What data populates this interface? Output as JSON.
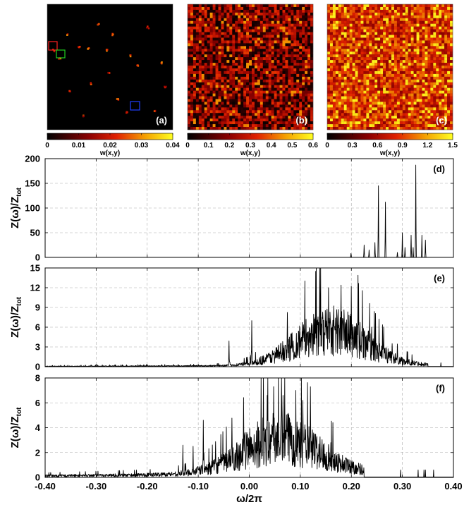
{
  "chart_data": [
    {
      "id": "a",
      "type": "heatmap",
      "panel_label": "(a)",
      "colorbar": {
        "label": "w(x,y)",
        "ticks": [
          "0",
          "0.01",
          "0.02",
          "0.03",
          "0.04"
        ],
        "range": [
          0,
          0.04
        ]
      },
      "density": "sparse",
      "highlight_boxes": [
        {
          "color": "#ff2020"
        },
        {
          "color": "#20d020"
        },
        {
          "color": "#2040ff"
        }
      ]
    },
    {
      "id": "b",
      "type": "heatmap",
      "panel_label": "(b)",
      "colorbar": {
        "label": "w(x,y)",
        "ticks": [
          "0",
          "0.1",
          "0.2",
          "0.3",
          "0.4",
          "0.5",
          "0.6"
        ],
        "range": [
          0,
          0.6
        ]
      },
      "density": "medium"
    },
    {
      "id": "c",
      "type": "heatmap",
      "panel_label": "(c)",
      "colorbar": {
        "label": "w(x,y)",
        "ticks": [
          "0",
          "0.3",
          "0.6",
          "0.9",
          "1.2",
          "1.5"
        ],
        "range": [
          0,
          1.5
        ]
      },
      "density": "dense"
    },
    {
      "id": "d",
      "type": "line",
      "panel_label": "(d)",
      "ylabel": {
        "main": "Z(ω)/Z",
        "sub": "tot"
      },
      "ylim": [
        0,
        200
      ],
      "yticks": [
        "0",
        "50",
        "100",
        "150",
        "200"
      ],
      "xlim": [
        -0.4,
        0.4
      ],
      "grid": true,
      "peaks": [
        {
          "x": 0.199,
          "y": 8
        },
        {
          "x": 0.225,
          "y": 25
        },
        {
          "x": 0.235,
          "y": 15
        },
        {
          "x": 0.246,
          "y": 30
        },
        {
          "x": 0.253,
          "y": 145
        },
        {
          "x": 0.267,
          "y": 112
        },
        {
          "x": 0.29,
          "y": 10
        },
        {
          "x": 0.3,
          "y": 50
        },
        {
          "x": 0.305,
          "y": 20
        },
        {
          "x": 0.317,
          "y": 45
        },
        {
          "x": 0.321,
          "y": 20
        },
        {
          "x": 0.326,
          "y": 187
        },
        {
          "x": 0.338,
          "y": 45
        },
        {
          "x": 0.345,
          "y": 35
        }
      ]
    },
    {
      "id": "e",
      "type": "line",
      "panel_label": "(e)",
      "ylabel": {
        "main": "Z(ω)/Z",
        "sub": "tot"
      },
      "ylim": [
        0,
        15
      ],
      "yticks": [
        "0",
        "3",
        "6",
        "9",
        "12",
        "15"
      ],
      "xlim": [
        -0.4,
        0.4
      ],
      "grid": true,
      "envelope": {
        "center": 0.16,
        "width": 0.07,
        "amplitude": 6,
        "tail_start": -0.4,
        "tail_level": 0.2,
        "cutoff": 0.35
      },
      "peaks": [
        {
          "x": -0.04,
          "y": 3.9
        },
        {
          "x": 0.005,
          "y": 7.0
        },
        {
          "x": 0.13,
          "y": 14.5
        },
        {
          "x": 0.155,
          "y": 12.0
        },
        {
          "x": 0.18,
          "y": 12.4
        },
        {
          "x": 0.2,
          "y": 12.2
        },
        {
          "x": 0.213,
          "y": 13.9
        },
        {
          "x": 0.24,
          "y": 6.0
        },
        {
          "x": 0.28,
          "y": 3.5
        }
      ]
    },
    {
      "id": "f",
      "type": "line",
      "panel_label": "(f)",
      "ylabel": {
        "main": "Z(ω)/Z",
        "sub": "tot"
      },
      "ylim": [
        0,
        8
      ],
      "yticks": [
        "0",
        "2",
        "4",
        "6",
        "8"
      ],
      "xlim": [
        -0.4,
        0.4
      ],
      "xlabel": "ω/2π",
      "xticks": [
        "-0.40",
        "-0.30",
        "-0.20",
        "-0.10",
        "0.00",
        "0.10",
        "0.20",
        "0.30",
        "0.40"
      ],
      "grid": true,
      "envelope": {
        "center": 0.06,
        "width": 0.075,
        "amplitude": 3.2,
        "tail_start": -0.4,
        "tail_level": 0.4,
        "cutoff": 0.225
      },
      "peaks": [
        {
          "x": -0.09,
          "y": 4.6
        },
        {
          "x": -0.13,
          "y": 2.6
        },
        {
          "x": -0.11,
          "y": 2.5
        },
        {
          "x": 0.035,
          "y": 6.6
        },
        {
          "x": 0.048,
          "y": 7.3
        },
        {
          "x": 0.066,
          "y": 6.6
        },
        {
          "x": 0.091,
          "y": 7.0
        },
        {
          "x": 0.105,
          "y": 6.2
        },
        {
          "x": 0.16,
          "y": 2.8
        }
      ]
    }
  ]
}
